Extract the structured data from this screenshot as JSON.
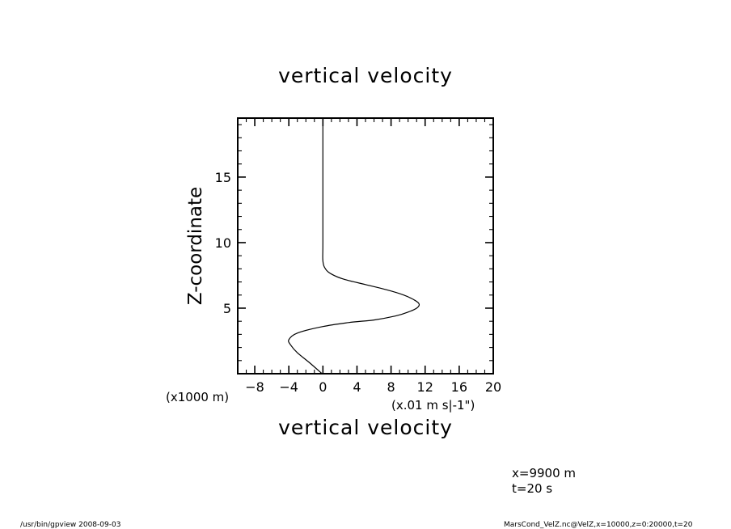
{
  "chart_data": {
    "type": "line",
    "title": "vertical velocity",
    "xlabel": "vertical velocity",
    "ylabel": "Z-coordinate",
    "x_unit": "(x.01 m s|-1\")",
    "y_unit": "(x1000 m)",
    "xlim": [
      -10,
      20
    ],
    "ylim": [
      0,
      19.5
    ],
    "x_ticks": [
      -8,
      -4,
      0,
      4,
      8,
      12,
      16,
      20
    ],
    "y_ticks": [
      5,
      10,
      15
    ],
    "grid": false,
    "series": [
      {
        "x": [
          -0.1,
          -1.5,
          -3.0,
          -3.8,
          -4.0,
          -3.0,
          0.0,
          3.0,
          6.0,
          8.5,
          10.0,
          11.0,
          11.3,
          10.8,
          9.5,
          7.5,
          5.0,
          2.5,
          1.0,
          0.3,
          0.0,
          0.0,
          0.0,
          0.0
        ],
        "y": [
          0.0,
          0.8,
          1.6,
          2.2,
          2.6,
          3.1,
          3.6,
          3.9,
          4.1,
          4.4,
          4.7,
          5.0,
          5.3,
          5.6,
          6.0,
          6.4,
          6.8,
          7.2,
          7.6,
          8.0,
          8.6,
          10.0,
          15.0,
          19.5
        ]
      }
    ]
  },
  "annotations": {
    "position": "x=9900  m",
    "time": "t=20  s"
  },
  "footer": {
    "left": "/usr/bin/gpview   2008-09-03",
    "right": "MarsCond_VelZ.nc@VelZ,x=10000,z=0:20000,t=20"
  }
}
